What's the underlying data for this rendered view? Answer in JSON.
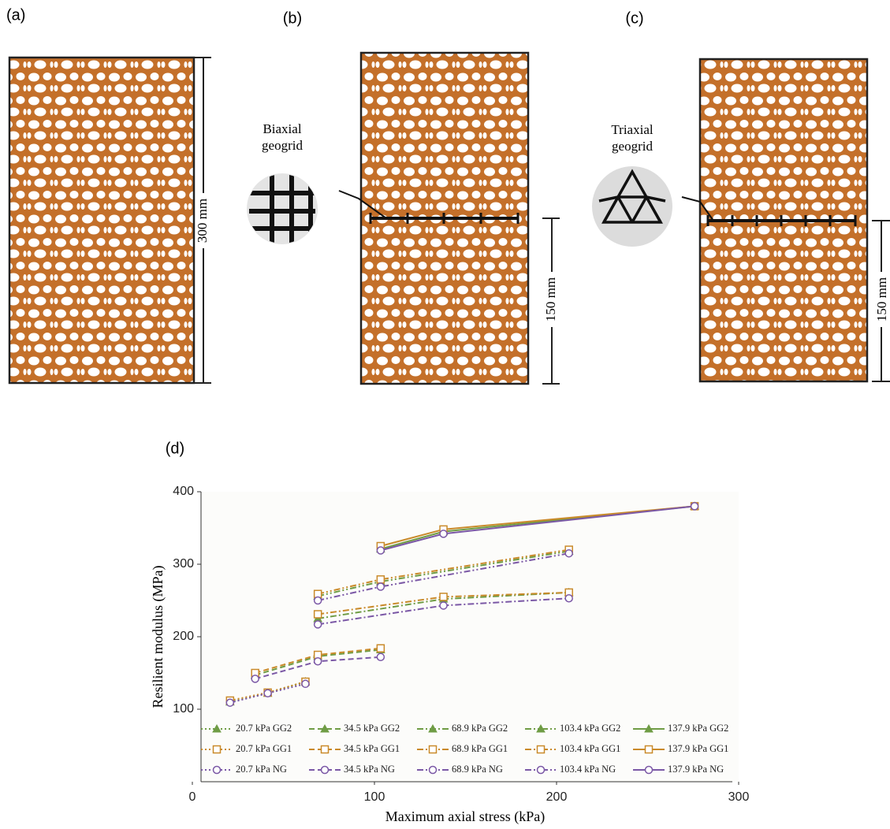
{
  "panels": {
    "a": {
      "label": "(a)",
      "dimension": "300 mm"
    },
    "b": {
      "label": "(b)",
      "dimension": "150 mm",
      "geogrid_label": [
        "Biaxial",
        "geogrid"
      ]
    },
    "c": {
      "label": "(c)",
      "dimension": "150 mm",
      "geogrid_label": [
        "Triaxial",
        "geogrid"
      ]
    }
  },
  "chart_data": {
    "type": "line",
    "title": "(d)",
    "x_label": "Maximum axial stress (kPa)",
    "y_label": "Resilient modulus (MPa)",
    "xlim": [
      0,
      300
    ],
    "ylim": [
      0,
      400
    ],
    "xticks": [
      0,
      100,
      200,
      300
    ],
    "yticks": [
      100,
      200,
      300,
      400
    ],
    "series": [
      {
        "name": "20.7 kPa GG2",
        "color": "#6f9c45",
        "linestyle": "dotted",
        "marker": "triangle",
        "x": [
          20.7,
          41.4,
          62.1
        ],
        "values": [
          110,
          122,
          138
        ]
      },
      {
        "name": "34.5 kPa GG2",
        "color": "#6f9c45",
        "linestyle": "dashed",
        "marker": "triangle",
        "x": [
          34.5,
          68.9,
          103.4
        ],
        "values": [
          147,
          173,
          182
        ]
      },
      {
        "name": "68.9 kPa GG2",
        "color": "#6f9c45",
        "linestyle": "dashdot",
        "marker": "triangle",
        "x": [
          68.9,
          137.9,
          206.8
        ],
        "values": [
          225,
          252,
          261
        ]
      },
      {
        "name": "103.4 kPa GG2",
        "color": "#6f9c45",
        "linestyle": "dashdotdot",
        "marker": "triangle",
        "x": [
          68.9,
          103.4,
          206.8
        ],
        "values": [
          256,
          276,
          318
        ]
      },
      {
        "name": "137.9 kPa GG2",
        "color": "#6f9c45",
        "linestyle": "solid",
        "marker": "triangle",
        "x": [
          103.4,
          137.9,
          275.8
        ],
        "values": [
          321,
          345,
          380
        ]
      },
      {
        "name": "20.7 kPa GG1",
        "color": "#c98a2a",
        "linestyle": "dotted",
        "marker": "square",
        "x": [
          20.7,
          41.4,
          62.1
        ],
        "values": [
          112,
          123,
          138
        ]
      },
      {
        "name": "34.5 kPa GG1",
        "color": "#c98a2a",
        "linestyle": "dashed",
        "marker": "square",
        "x": [
          34.5,
          68.9,
          103.4
        ],
        "values": [
          150,
          175,
          184
        ]
      },
      {
        "name": "68.9 kPa GG1",
        "color": "#c98a2a",
        "linestyle": "dashdot",
        "marker": "square",
        "x": [
          68.9,
          137.9,
          206.8
        ],
        "values": [
          231,
          255,
          261
        ]
      },
      {
        "name": "103.4 kPa GG1",
        "color": "#c98a2a",
        "linestyle": "dashdotdot",
        "marker": "square",
        "x": [
          68.9,
          103.4,
          206.8
        ],
        "values": [
          259,
          279,
          320
        ]
      },
      {
        "name": "137.9 kPa GG1",
        "color": "#c98a2a",
        "linestyle": "solid",
        "marker": "square",
        "x": [
          103.4,
          137.9,
          275.8
        ],
        "values": [
          325,
          348,
          380
        ]
      },
      {
        "name": "20.7 kPa NG",
        "color": "#7b58a6",
        "linestyle": "dotted",
        "marker": "circle",
        "x": [
          20.7,
          41.4,
          62.1
        ],
        "values": [
          109,
          122,
          135
        ]
      },
      {
        "name": "34.5 kPa NG",
        "color": "#7b58a6",
        "linestyle": "dashed",
        "marker": "circle",
        "x": [
          34.5,
          68.9,
          103.4
        ],
        "values": [
          142,
          166,
          172
        ]
      },
      {
        "name": "68.9 kPa NG",
        "color": "#7b58a6",
        "linestyle": "dashdot",
        "marker": "circle",
        "x": [
          68.9,
          137.9,
          206.8
        ],
        "values": [
          217,
          243,
          253
        ]
      },
      {
        "name": "103.4 kPa NG",
        "color": "#7b58a6",
        "linestyle": "dashdotdot",
        "marker": "circle",
        "x": [
          68.9,
          103.4,
          206.8
        ],
        "values": [
          250,
          269,
          315
        ]
      },
      {
        "name": "137.9 kPa NG",
        "color": "#7b58a6",
        "linestyle": "solid",
        "marker": "circle",
        "x": [
          103.4,
          137.9,
          275.8
        ],
        "values": [
          319,
          342,
          380
        ]
      }
    ]
  }
}
